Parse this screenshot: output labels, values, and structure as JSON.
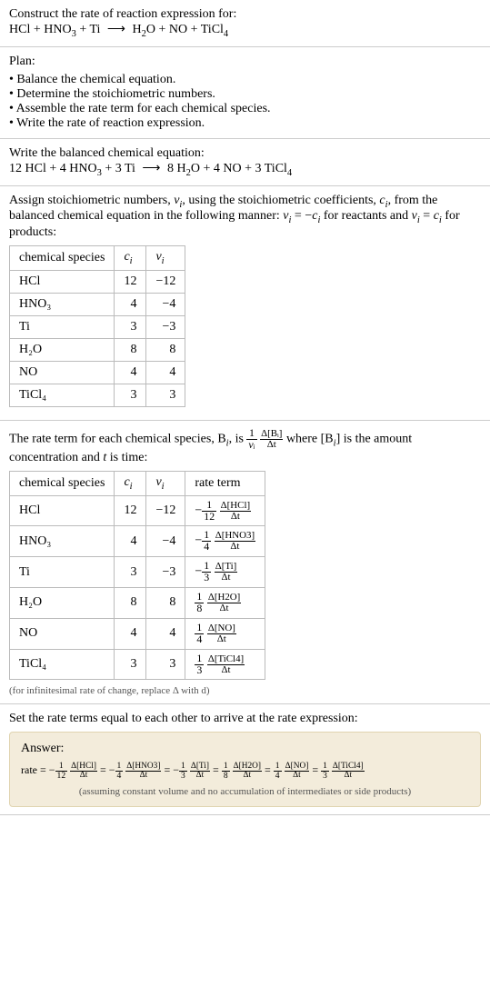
{
  "header": {
    "title": "Construct the rate of reaction expression for:",
    "equation_lhs": "HCl + HNO",
    "equation_sub1": "3",
    "equation_mid1": " + Ti ",
    "equation_arrow": "⟶",
    "equation_rhs1": " H",
    "equation_sub2": "2",
    "equation_rhs2": "O + NO + TiCl",
    "equation_sub3": "4"
  },
  "plan": {
    "title": "Plan:",
    "items": [
      "Balance the chemical equation.",
      "Determine the stoichiometric numbers.",
      "Assemble the rate term for each chemical species.",
      "Write the rate of reaction expression."
    ]
  },
  "balanced": {
    "title": "Write the balanced chemical equation:",
    "c1": "12 HCl + 4 HNO",
    "s1": "3",
    "c2": " + 3 Ti ",
    "arrow": "⟶",
    "c3": " 8 H",
    "s2": "2",
    "c4": "O + 4 NO + 3 TiCl",
    "s3": "4"
  },
  "stoich": {
    "intro1": "Assign stoichiometric numbers, ",
    "nu": "ν",
    "i": "i",
    "intro2": ", using the stoichiometric coefficients, ",
    "c": "c",
    "intro3": ", from the balanced chemical equation in the following manner: ",
    "rel1": " = −",
    "rel2": " for reactants and ",
    "rel3": " = ",
    "rel4": " for products:",
    "cols": [
      "chemical species",
      "cᵢ",
      "νᵢ"
    ],
    "rows": [
      {
        "sp": "HCl",
        "c": "12",
        "v": "−12"
      },
      {
        "sp": "HNO₃",
        "c": "4",
        "v": "−4"
      },
      {
        "sp": "Ti",
        "c": "3",
        "v": "−3"
      },
      {
        "sp": "H₂O",
        "c": "8",
        "v": "8"
      },
      {
        "sp": "NO",
        "c": "4",
        "v": "4"
      },
      {
        "sp": "TiCl₄",
        "c": "3",
        "v": "3"
      }
    ]
  },
  "rateterm": {
    "intro1": "The rate term for each chemical species, B",
    "intro2": ", is ",
    "frac1_num": "1",
    "frac1_den": "νᵢ",
    "frac2_num": "Δ[Bᵢ]",
    "frac2_den": "Δt",
    "intro3": " where [B",
    "intro4": "] is the amount concentration and ",
    "t": "t",
    "intro5": " is time:",
    "cols": [
      "chemical species",
      "cᵢ",
      "νᵢ",
      "rate term"
    ],
    "rows": [
      {
        "sp": "HCl",
        "c": "12",
        "v": "−12",
        "sign": "−",
        "fn": "1",
        "fd": "12",
        "dn": "Δ[HCl]",
        "dd": "Δt"
      },
      {
        "sp": "HNO₃",
        "c": "4",
        "v": "−4",
        "sign": "−",
        "fn": "1",
        "fd": "4",
        "dn": "Δ[HNO3]",
        "dd": "Δt"
      },
      {
        "sp": "Ti",
        "c": "3",
        "v": "−3",
        "sign": "−",
        "fn": "1",
        "fd": "3",
        "dn": "Δ[Ti]",
        "dd": "Δt"
      },
      {
        "sp": "H₂O",
        "c": "8",
        "v": "8",
        "sign": "",
        "fn": "1",
        "fd": "8",
        "dn": "Δ[H2O]",
        "dd": "Δt"
      },
      {
        "sp": "NO",
        "c": "4",
        "v": "4",
        "sign": "",
        "fn": "1",
        "fd": "4",
        "dn": "Δ[NO]",
        "dd": "Δt"
      },
      {
        "sp": "TiCl₄",
        "c": "3",
        "v": "3",
        "sign": "",
        "fn": "1",
        "fd": "3",
        "dn": "Δ[TiCl4]",
        "dd": "Δt"
      }
    ],
    "note": "(for infinitesimal rate of change, replace Δ with d)"
  },
  "final": {
    "title": "Set the rate terms equal to each other to arrive at the rate expression:",
    "answer_label": "Answer:",
    "rate_label": "rate = ",
    "terms": [
      {
        "sign": "−",
        "fn": "1",
        "fd": "12",
        "dn": "Δ[HCl]",
        "dd": "Δt"
      },
      {
        "sign": "−",
        "fn": "1",
        "fd": "4",
        "dn": "Δ[HNO3]",
        "dd": "Δt"
      },
      {
        "sign": "−",
        "fn": "1",
        "fd": "3",
        "dn": "Δ[Ti]",
        "dd": "Δt"
      },
      {
        "sign": "",
        "fn": "1",
        "fd": "8",
        "dn": "Δ[H2O]",
        "dd": "Δt"
      },
      {
        "sign": "",
        "fn": "1",
        "fd": "4",
        "dn": "Δ[NO]",
        "dd": "Δt"
      },
      {
        "sign": "",
        "fn": "1",
        "fd": "3",
        "dn": "Δ[TiCl4]",
        "dd": "Δt"
      }
    ],
    "note": "(assuming constant volume and no accumulation of intermediates or side products)"
  },
  "colors": {
    "answer_bg": "#f3ecdb",
    "answer_border": "#e0d4b0",
    "divider": "#cccccc",
    "table_border": "#bbbbbb"
  }
}
